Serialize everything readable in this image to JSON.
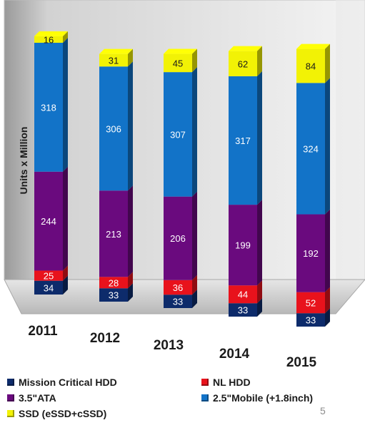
{
  "chart_data": {
    "type": "bar",
    "stacked": true,
    "categories": [
      "2011",
      "2012",
      "2013",
      "2014",
      "2015"
    ],
    "series": [
      {
        "name": "Mission Critical HDD",
        "color": "#0d2b6b",
        "values": [
          34,
          33,
          33,
          33,
          33
        ]
      },
      {
        "name": "NL HDD",
        "color": "#e8121c",
        "values": [
          25,
          28,
          36,
          44,
          52
        ]
      },
      {
        "name": "3.5\"ATA",
        "color": "#6a0a7e",
        "values": [
          244,
          213,
          206,
          199,
          192
        ]
      },
      {
        "name": "2.5\"Mobile  (+1.8inch)",
        "color": "#1273c8",
        "values": [
          318,
          306,
          307,
          317,
          324
        ]
      },
      {
        "name": "SSD (eSSD+cSSD)",
        "color": "#f2f205",
        "values": [
          16,
          31,
          45,
          62,
          84
        ]
      }
    ],
    "ylabel": "Units x Million",
    "xlabel": "",
    "title": "",
    "ylim": [
      0,
      700
    ],
    "grid": false,
    "legend_position": "bottom"
  },
  "page_number": "5"
}
